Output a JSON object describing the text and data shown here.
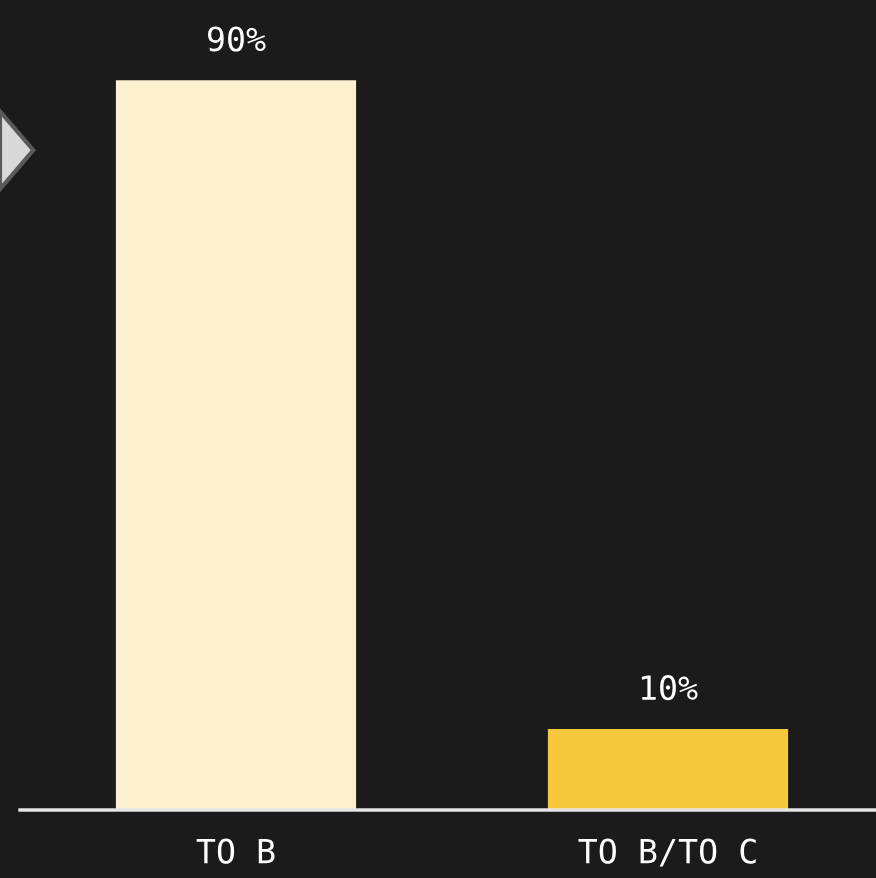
{
  "chart_data": {
    "type": "bar",
    "categories": [
      "TO B",
      "TO B/TO C"
    ],
    "values": [
      90,
      10
    ],
    "colors": [
      "#fdf0cf",
      "#f6c83c"
    ],
    "value_labels": [
      "90%",
      "10%"
    ],
    "grid": false,
    "legend": false
  }
}
